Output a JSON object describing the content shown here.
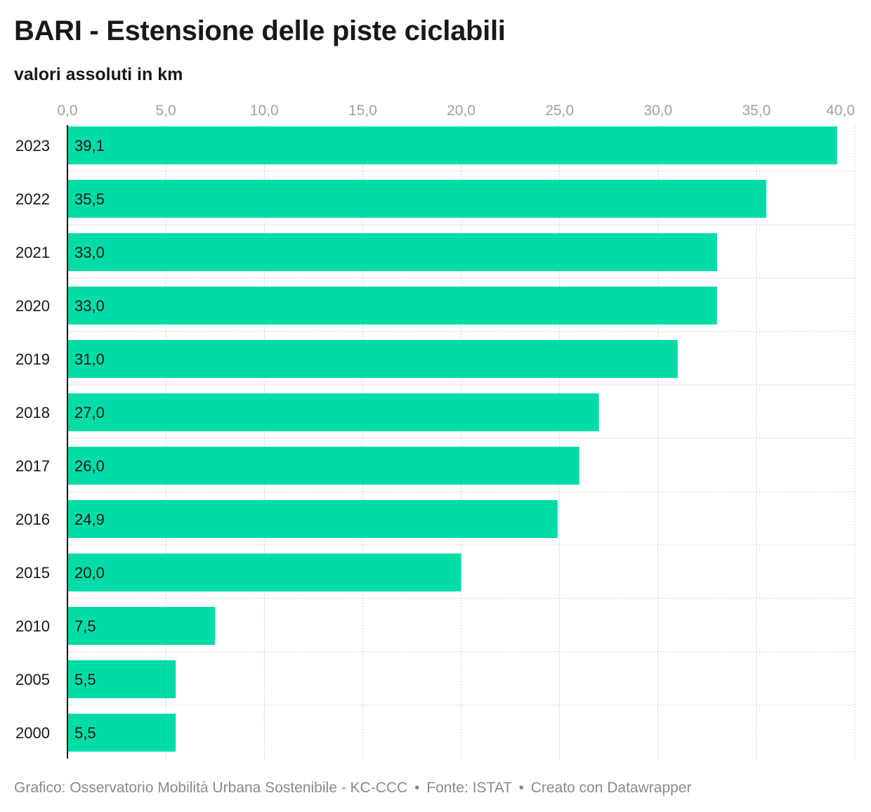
{
  "title": "BARI - Estensione delle piste ciclabili",
  "subtitle": "valori assoluti in km",
  "footer": {
    "credit": "Grafico: Osservatorio Mobilità Urbana Sostenibile - KC-CCC",
    "separator": "•",
    "source": "Fonte: ISTAT",
    "tool": "Creato con Datawrapper"
  },
  "colors": {
    "bar": "#00dca8",
    "grid": "#cfcfcf",
    "axis_text": "#a0a0a0",
    "text": "#181818",
    "baseline": "#181818"
  },
  "chart_data": {
    "type": "bar",
    "orientation": "horizontal",
    "title": "BARI - Estensione delle piste ciclabili",
    "subtitle": "valori assoluti in km",
    "xlim": [
      0,
      40
    ],
    "ticks": [
      0,
      5,
      10,
      15,
      20,
      25,
      30,
      35,
      40
    ],
    "tick_labels": [
      "0,0",
      "5,0",
      "10,0",
      "15,0",
      "20,0",
      "25,0",
      "30,0",
      "35,0",
      "40,0"
    ],
    "axis_position": "top",
    "grid": true,
    "categories": [
      "2023",
      "2022",
      "2021",
      "2020",
      "2019",
      "2018",
      "2017",
      "2016",
      "2015",
      "2010",
      "2005",
      "2000"
    ],
    "values": [
      39.1,
      35.5,
      33.0,
      33.0,
      31.0,
      27.0,
      26.0,
      24.9,
      20.0,
      7.5,
      5.5,
      5.5
    ],
    "value_labels": [
      "39,1",
      "35,5",
      "33,0",
      "33,0",
      "31,0",
      "27,0",
      "26,0",
      "24,9",
      "20,0",
      "7,5",
      "5,5",
      "5,5"
    ]
  }
}
